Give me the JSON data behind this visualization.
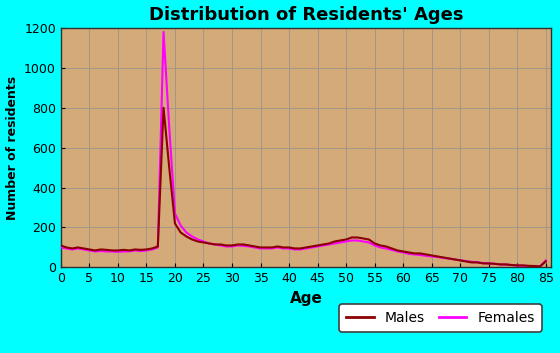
{
  "title": "Distribution of Residents' Ages",
  "xlabel": "Age",
  "ylabel": "Number of residents",
  "xlim": [
    0,
    86
  ],
  "ylim": [
    0,
    1200
  ],
  "xticks": [
    0,
    5,
    10,
    15,
    20,
    25,
    30,
    35,
    40,
    45,
    50,
    55,
    60,
    65,
    70,
    75,
    80,
    85
  ],
  "yticks": [
    0,
    200,
    400,
    600,
    800,
    1000,
    1200
  ],
  "bg_figure": "#00FFFF",
  "bg_axes": "#D4AA78",
  "grid_color": "#909090",
  "males_color": "#8B0000",
  "females_color": "#FF00FF",
  "legend_bg": "#FFFFFF",
  "legend_edge": "#404040",
  "ages": [
    0,
    1,
    2,
    3,
    4,
    5,
    6,
    7,
    8,
    9,
    10,
    11,
    12,
    13,
    14,
    15,
    16,
    17,
    18,
    19,
    20,
    21,
    22,
    23,
    24,
    25,
    26,
    27,
    28,
    29,
    30,
    31,
    32,
    33,
    34,
    35,
    36,
    37,
    38,
    39,
    40,
    41,
    42,
    43,
    44,
    45,
    46,
    47,
    48,
    49,
    50,
    51,
    52,
    53,
    54,
    55,
    56,
    57,
    58,
    59,
    60,
    61,
    62,
    63,
    64,
    65,
    66,
    67,
    68,
    69,
    70,
    71,
    72,
    73,
    74,
    75,
    76,
    77,
    78,
    79,
    80,
    81,
    82,
    83,
    84,
    85
  ],
  "males": [
    110,
    100,
    95,
    100,
    95,
    90,
    85,
    90,
    88,
    85,
    85,
    88,
    85,
    90,
    88,
    90,
    95,
    105,
    800,
    500,
    220,
    175,
    155,
    140,
    130,
    125,
    120,
    115,
    115,
    110,
    110,
    115,
    115,
    110,
    105,
    100,
    100,
    100,
    105,
    100,
    100,
    95,
    95,
    100,
    105,
    110,
    115,
    120,
    130,
    135,
    140,
    150,
    150,
    145,
    140,
    120,
    110,
    105,
    95,
    85,
    80,
    75,
    70,
    70,
    65,
    60,
    55,
    50,
    45,
    40,
    35,
    30,
    25,
    25,
    20,
    20,
    18,
    15,
    15,
    12,
    10,
    10,
    8,
    7,
    5,
    30
  ],
  "females": [
    100,
    95,
    90,
    95,
    90,
    85,
    80,
    82,
    80,
    80,
    78,
    80,
    80,
    85,
    82,
    85,
    90,
    100,
    1180,
    700,
    270,
    210,
    175,
    155,
    140,
    130,
    120,
    115,
    110,
    105,
    105,
    110,
    108,
    105,
    100,
    95,
    95,
    95,
    100,
    95,
    95,
    90,
    90,
    95,
    100,
    105,
    110,
    115,
    120,
    125,
    130,
    135,
    135,
    130,
    125,
    110,
    100,
    95,
    88,
    80,
    75,
    68,
    65,
    62,
    58,
    55,
    52,
    48,
    44,
    40,
    36,
    32,
    28,
    26,
    22,
    20,
    18,
    15,
    14,
    12,
    10,
    8,
    7,
    6,
    5,
    35
  ],
  "title_fontsize": 13,
  "xlabel_fontsize": 11,
  "ylabel_fontsize": 9,
  "tick_fontsize": 9
}
